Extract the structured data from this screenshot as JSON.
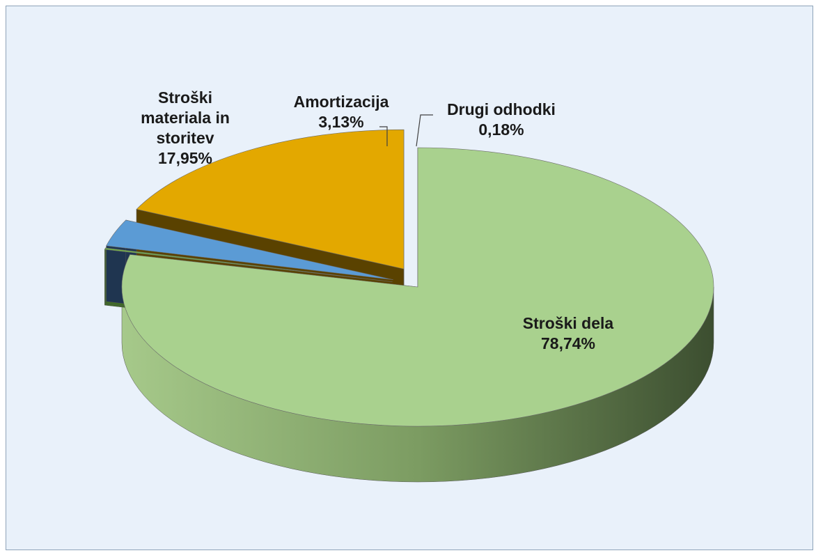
{
  "chart_data": {
    "type": "pie",
    "title": "",
    "three_d": true,
    "exploded": true,
    "legend": "none",
    "slices": [
      {
        "name": "Stroški dela",
        "value": 78.74,
        "label": "78,74%",
        "color": "#a9d18e"
      },
      {
        "name": "Drugi odhodki",
        "value": 0.18,
        "label": "0,18%",
        "color": "#70ad47"
      },
      {
        "name": "Amortizacija",
        "value": 3.13,
        "label": "3,13%",
        "color": "#5b9bd5"
      },
      {
        "name": "Stroški materiala in storitev",
        "value": 17.95,
        "label": "17,95%",
        "color": "#e6a800"
      }
    ]
  },
  "labels": {
    "stroski_dela": {
      "name": "Stroški dela",
      "value": "78,74%"
    },
    "materiala": {
      "name_line1": "Stroški",
      "name_line2": "materiala in",
      "name_line3": "storitev",
      "value": "17,95%"
    },
    "amortizacija": {
      "name": "Amortizacija",
      "value": "3,13%"
    },
    "drugi": {
      "name": "Drugi odhodki",
      "value": "0,18%"
    }
  }
}
